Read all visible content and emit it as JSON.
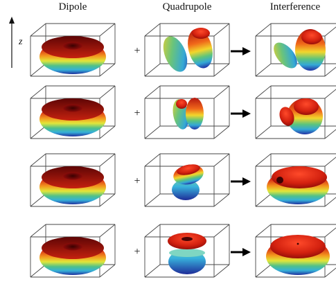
{
  "columns": [
    {
      "title": "Dipole"
    },
    {
      "title": "Quadrupole"
    },
    {
      "title": "Interference"
    }
  ],
  "axis_label": "z",
  "operators": {
    "plus": "+"
  },
  "colors": {
    "top": "#8b0a0a",
    "upper": "#e23a16",
    "mid": "#f6a41f",
    "yellow": "#e7e83a",
    "green": "#57c27a",
    "cyan": "#3ab8d8",
    "bottom": "#2038a8",
    "box_line": "#444444"
  },
  "rows": [
    {
      "dipole": "torus",
      "quadrupole": "two-tilted-lobes-wide",
      "interference": "asymmetric-lobes-large-right"
    },
    {
      "dipole": "torus",
      "quadrupole": "two-tilted-lobes-narrow",
      "interference": "asymmetric-lobes-bulb"
    },
    {
      "dipole": "torus",
      "quadrupole": "stacked-lobes-tilted",
      "interference": "flattened-dome-with-dimple"
    },
    {
      "dipole": "torus",
      "quadrupole": "stacked-torus-and-bowl",
      "interference": "dome"
    }
  ]
}
